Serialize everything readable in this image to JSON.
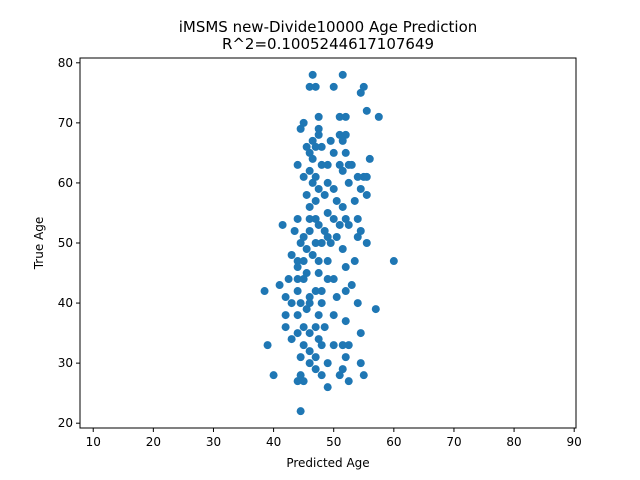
{
  "chart_data": {
    "type": "scatter",
    "title": "iMSMS new-Divide10000 Age Prediction",
    "subtitle": "R^2=0.1005244617107649",
    "x_label": "Predicted Age",
    "y_label": "True Age",
    "color": "#1f77b4",
    "xlim": [
      7.8,
      90.3
    ],
    "ylim": [
      19.2,
      80.8
    ],
    "xticks": [
      10,
      20,
      30,
      40,
      50,
      60,
      70,
      80,
      90
    ],
    "yticks": [
      20,
      30,
      40,
      50,
      60,
      70,
      80
    ],
    "x": [
      46.5,
      51.5,
      46,
      47,
      50,
      54.5,
      55,
      51,
      52,
      47.5,
      55.5,
      57.5,
      45,
      44.5,
      47.5,
      47.5,
      51,
      52,
      51.5,
      46.5,
      49.5,
      45.5,
      47,
      48,
      46,
      50,
      52,
      56,
      46.5,
      48,
      44,
      49,
      51,
      52.5,
      53,
      46,
      51.5,
      47,
      45,
      54,
      55,
      55.5,
      49,
      46.5,
      47.5,
      50,
      52.5,
      54.5,
      55.5,
      45.5,
      48.5,
      50.5,
      47,
      53.5,
      46,
      51.5,
      49,
      46,
      44,
      47,
      50,
      52,
      54,
      52.5,
      41.5,
      43.5,
      47.5,
      48.5,
      51,
      45,
      46,
      49,
      50.5,
      54,
      55.5,
      54.5,
      44.5,
      47,
      48,
      49.5,
      51.5,
      45.5,
      46.5,
      43,
      44,
      45,
      47.5,
      49,
      52,
      53.5,
      60,
      44,
      45.5,
      47.5,
      50,
      42.5,
      44,
      45,
      49,
      41,
      48,
      46,
      38.5,
      42,
      44,
      47,
      50.5,
      53,
      52,
      43,
      44.5,
      46,
      48,
      54,
      57,
      42,
      44,
      45.5,
      47.5,
      50,
      52,
      42,
      45,
      47,
      48.5,
      44,
      46,
      54.5,
      43,
      47.5,
      39,
      45,
      48,
      50,
      51.5,
      52.5,
      46,
      44.5,
      47,
      52,
      46,
      49,
      54.5,
      51.5,
      47,
      51,
      55,
      40,
      44.5,
      48,
      45,
      44,
      52.5,
      49,
      44.5
    ],
    "values": [
      78,
      78,
      76,
      76,
      76,
      75,
      76,
      71,
      71,
      71,
      72,
      71,
      70,
      69,
      69,
      68,
      68,
      68,
      67,
      67,
      67,
      66,
      66,
      66,
      65,
      65,
      65,
      64,
      64,
      63,
      63,
      63,
      63,
      63,
      63,
      62,
      62,
      61,
      61,
      61,
      61,
      61,
      60,
      60,
      59,
      59,
      60,
      59,
      58,
      58,
      58,
      57,
      57,
      57,
      56,
      56,
      55,
      54,
      54,
      54,
      54,
      54,
      54,
      53,
      53,
      52,
      53,
      52,
      53,
      51,
      52,
      51,
      51,
      51,
      50,
      52,
      50,
      50,
      50,
      50,
      49,
      49,
      48,
      48,
      47,
      47,
      47,
      47,
      46,
      47,
      47,
      46,
      45,
      45,
      44,
      44,
      44,
      44,
      44,
      43,
      42,
      41,
      42,
      41,
      42,
      42,
      41,
      43,
      42,
      40,
      40,
      40,
      40,
      40,
      39,
      38,
      38,
      39,
      38,
      38,
      37,
      36,
      36,
      36,
      36,
      35,
      35,
      35,
      34,
      34,
      33,
      33,
      33,
      33,
      33,
      33,
      32,
      31,
      31,
      31,
      30,
      30,
      30,
      29,
      29,
      28,
      28,
      28,
      28,
      28,
      27,
      27,
      27,
      26,
      22
    ]
  }
}
